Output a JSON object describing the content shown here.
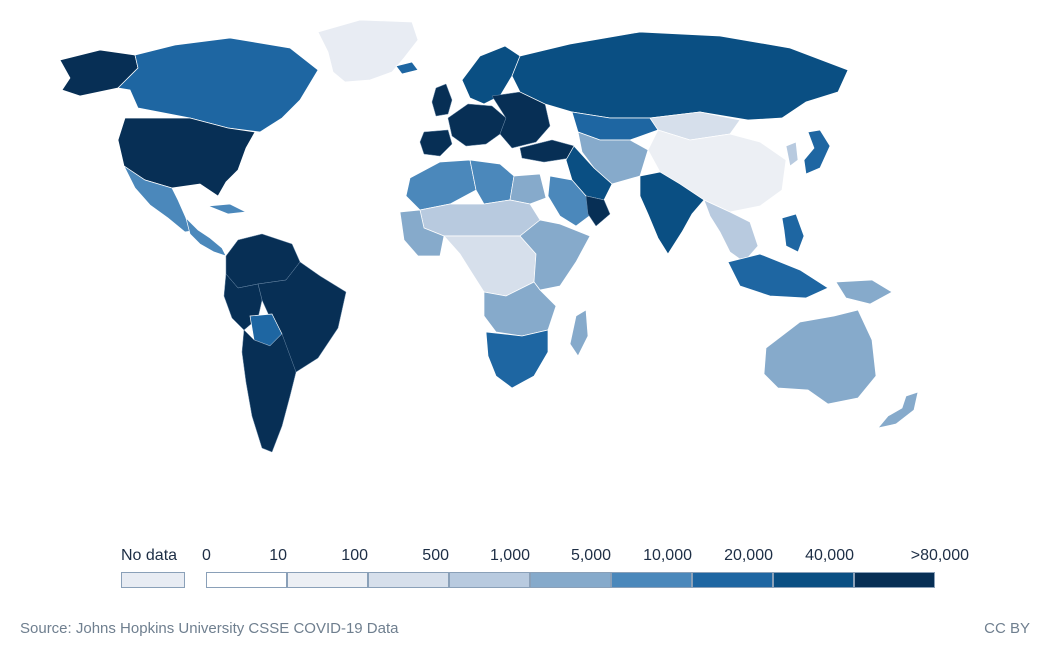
{
  "colors": {
    "no_data": "#e8ecf3",
    "bins": [
      "#ffffff",
      "#eceff4",
      "#d6dfeb",
      "#b8cadf",
      "#86aacb",
      "#4b88bb",
      "#1e66a2",
      "#0a4f83",
      "#072f55"
    ]
  },
  "legend": {
    "no_data_label": "No data",
    "tick_labels": [
      "0",
      "10",
      "100",
      "500",
      "1,000",
      "5,000",
      "10,000",
      "20,000",
      "40,000",
      ">80,000"
    ]
  },
  "footer": {
    "source": "Source: Johns Hopkins University CSSE COVID-19 Data",
    "license": "CC BY"
  },
  "regions": [
    {
      "id": "greenland",
      "bin": -1
    },
    {
      "id": "alaska",
      "bin": 8
    },
    {
      "id": "canada",
      "bin": 6
    },
    {
      "id": "usa",
      "bin": 8
    },
    {
      "id": "mexico",
      "bin": 5
    },
    {
      "id": "central-america",
      "bin": 5
    },
    {
      "id": "cuba",
      "bin": 5
    },
    {
      "id": "colombia-venezuela",
      "bin": 8
    },
    {
      "id": "brazil",
      "bin": 8
    },
    {
      "id": "bolivia",
      "bin": 6
    },
    {
      "id": "peru",
      "bin": 8
    },
    {
      "id": "argentina-chile",
      "bin": 8
    },
    {
      "id": "iceland",
      "bin": 6
    },
    {
      "id": "uk",
      "bin": 8
    },
    {
      "id": "scandinavia",
      "bin": 7
    },
    {
      "id": "western-europe",
      "bin": 8
    },
    {
      "id": "iberia",
      "bin": 8
    },
    {
      "id": "eastern-europe",
      "bin": 8
    },
    {
      "id": "russia",
      "bin": 7
    },
    {
      "id": "turkey",
      "bin": 8
    },
    {
      "id": "kazakhstan",
      "bin": 6
    },
    {
      "id": "central-asia",
      "bin": 4
    },
    {
      "id": "mongolia",
      "bin": 2
    },
    {
      "id": "china",
      "bin": 1
    },
    {
      "id": "iran",
      "bin": 7
    },
    {
      "id": "arabia",
      "bin": 5
    },
    {
      "id": "oman",
      "bin": 8
    },
    {
      "id": "india",
      "bin": 7
    },
    {
      "id": "southeast-asia",
      "bin": 3
    },
    {
      "id": "japan",
      "bin": 6
    },
    {
      "id": "korea",
      "bin": 3
    },
    {
      "id": "philippines",
      "bin": 6
    },
    {
      "id": "indonesia",
      "bin": 6
    },
    {
      "id": "papua",
      "bin": 4
    },
    {
      "id": "australia",
      "bin": 4
    },
    {
      "id": "new-zealand",
      "bin": 4
    },
    {
      "id": "north-africa",
      "bin": 5
    },
    {
      "id": "libya",
      "bin": 5
    },
    {
      "id": "egypt",
      "bin": 4
    },
    {
      "id": "sahel",
      "bin": 3
    },
    {
      "id": "west-africa",
      "bin": 4
    },
    {
      "id": "central-africa",
      "bin": 2
    },
    {
      "id": "east-africa",
      "bin": 4
    },
    {
      "id": "southern-africa-north",
      "bin": 4
    },
    {
      "id": "south-africa",
      "bin": 6
    },
    {
      "id": "madagascar",
      "bin": 4
    }
  ]
}
